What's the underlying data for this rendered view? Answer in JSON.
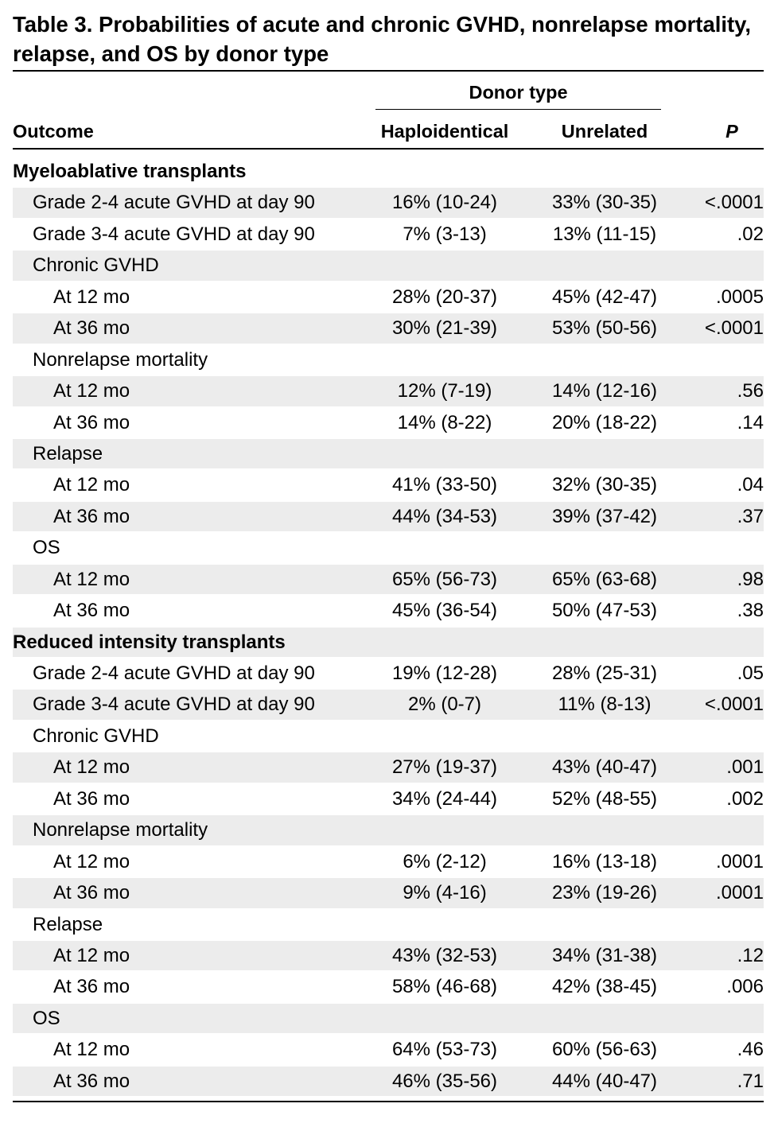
{
  "title": "Table 3. Probabilities of acute and chronic GVHD, nonrelapse mortality, relapse, and OS by donor type",
  "header": {
    "span_label": "Donor type",
    "outcome": "Outcome",
    "haplo": "Haploidentical",
    "unrelated": "Unrelated",
    "p": "P"
  },
  "rows": [
    {
      "level": "section",
      "label": "Myeloablative transplants",
      "haplo": "",
      "unrelated": "",
      "p": "",
      "shaded": false
    },
    {
      "level": "sub",
      "label": "Grade 2-4 acute GVHD at day 90",
      "haplo": "16% (10-24)",
      "unrelated": "33% (30-35)",
      "p": "<.0001",
      "shaded": true
    },
    {
      "level": "sub",
      "label": "Grade 3-4 acute GVHD at day 90",
      "haplo": "7% (3-13)",
      "unrelated": "13% (11-15)",
      "p": ".02",
      "shaded": false
    },
    {
      "level": "sub",
      "label": "Chronic GVHD",
      "haplo": "",
      "unrelated": "",
      "p": "",
      "shaded": true
    },
    {
      "level": "subsub",
      "label": "At 12 mo",
      "haplo": "28% (20-37)",
      "unrelated": "45% (42-47)",
      "p": ".0005",
      "shaded": false
    },
    {
      "level": "subsub",
      "label": "At 36 mo",
      "haplo": "30% (21-39)",
      "unrelated": "53% (50-56)",
      "p": "<.0001",
      "shaded": true
    },
    {
      "level": "sub",
      "label": "Nonrelapse mortality",
      "haplo": "",
      "unrelated": "",
      "p": "",
      "shaded": false
    },
    {
      "level": "subsub",
      "label": "At 12 mo",
      "haplo": "12% (7-19)",
      "unrelated": "14% (12-16)",
      "p": ".56",
      "shaded": true
    },
    {
      "level": "subsub",
      "label": "At 36 mo",
      "haplo": "14% (8-22)",
      "unrelated": "20% (18-22)",
      "p": ".14",
      "shaded": false
    },
    {
      "level": "sub",
      "label": "Relapse",
      "haplo": "",
      "unrelated": "",
      "p": "",
      "shaded": true
    },
    {
      "level": "subsub",
      "label": "At 12 mo",
      "haplo": "41% (33-50)",
      "unrelated": "32% (30-35)",
      "p": ".04",
      "shaded": false
    },
    {
      "level": "subsub",
      "label": "At 36 mo",
      "haplo": "44% (34-53)",
      "unrelated": "39% (37-42)",
      "p": ".37",
      "shaded": true
    },
    {
      "level": "sub",
      "label": "OS",
      "haplo": "",
      "unrelated": "",
      "p": "",
      "shaded": false
    },
    {
      "level": "subsub",
      "label": "At 12 mo",
      "haplo": "65% (56-73)",
      "unrelated": "65% (63-68)",
      "p": ".98",
      "shaded": true
    },
    {
      "level": "subsub",
      "label": "At 36 mo",
      "haplo": "45% (36-54)",
      "unrelated": "50% (47-53)",
      "p": ".38",
      "shaded": false
    },
    {
      "level": "section",
      "label": "Reduced intensity transplants",
      "haplo": "",
      "unrelated": "",
      "p": "",
      "shaded": true
    },
    {
      "level": "sub",
      "label": "Grade 2-4 acute GVHD at day 90",
      "haplo": "19% (12-28)",
      "unrelated": "28% (25-31)",
      "p": ".05",
      "shaded": false
    },
    {
      "level": "sub",
      "label": "Grade 3-4 acute GVHD at day 90",
      "haplo": "2% (0-7)",
      "unrelated": "11% (8-13)",
      "p": "<.0001",
      "shaded": true
    },
    {
      "level": "sub",
      "label": "Chronic GVHD",
      "haplo": "",
      "unrelated": "",
      "p": "",
      "shaded": false
    },
    {
      "level": "subsub",
      "label": "At 12 mo",
      "haplo": "27% (19-37)",
      "unrelated": "43% (40-47)",
      "p": ".001",
      "shaded": true
    },
    {
      "level": "subsub",
      "label": "At 36 mo",
      "haplo": "34% (24-44)",
      "unrelated": "52% (48-55)",
      "p": ".002",
      "shaded": false
    },
    {
      "level": "sub",
      "label": "Nonrelapse mortality",
      "haplo": "",
      "unrelated": "",
      "p": "",
      "shaded": true
    },
    {
      "level": "subsub",
      "label": "At 12 mo",
      "haplo": "6% (2-12)",
      "unrelated": "16% (13-18)",
      "p": ".0001",
      "shaded": false
    },
    {
      "level": "subsub",
      "label": "At 36 mo",
      "haplo": "9% (4-16)",
      "unrelated": "23% (19-26)",
      "p": ".0001",
      "shaded": true
    },
    {
      "level": "sub",
      "label": "Relapse",
      "haplo": "",
      "unrelated": "",
      "p": "",
      "shaded": false
    },
    {
      "level": "subsub",
      "label": "At 12 mo",
      "haplo": "43% (32-53)",
      "unrelated": "34% (31-38)",
      "p": ".12",
      "shaded": true
    },
    {
      "level": "subsub",
      "label": "At 36 mo",
      "haplo": "58% (46-68)",
      "unrelated": "42% (38-45)",
      "p": ".006",
      "shaded": false
    },
    {
      "level": "sub",
      "label": "OS",
      "haplo": "",
      "unrelated": "",
      "p": "",
      "shaded": true
    },
    {
      "level": "subsub",
      "label": "At 12 mo",
      "haplo": "64% (53-73)",
      "unrelated": "60% (56-63)",
      "p": ".46",
      "shaded": false
    },
    {
      "level": "subsub",
      "label": "At 36 mo",
      "haplo": "46% (35-56)",
      "unrelated": "44% (40-47)",
      "p": ".71",
      "shaded": true
    }
  ]
}
